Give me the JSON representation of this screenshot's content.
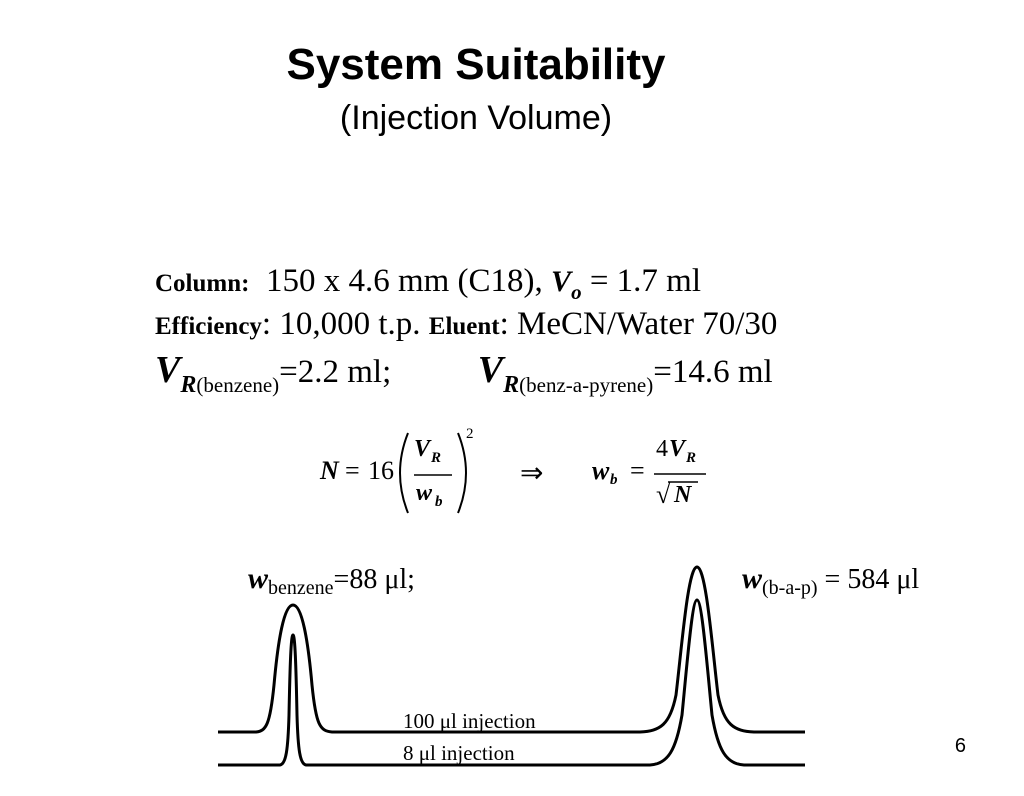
{
  "slide": {
    "title": "System Suitability",
    "subtitle": "(Injection Volume)",
    "page_number": "6"
  },
  "conditions": {
    "column_label": "Column",
    "column_colon": ":",
    "column_value": "150 x 4.6 mm (C18),",
    "vo_symbol": "V",
    "vo_subscript": "o",
    "vo_value": "= 1.7 ml",
    "efficiency_label": "Efficiency",
    "efficiency_value": ": 10,000 t.p.",
    "eluent_label": "Eluent",
    "eluent_value": ": MeCN/Water 70/30",
    "vr_symbol": "V",
    "vr_subscript": "R",
    "vr1_compound": "(benzene)",
    "vr1_value": "=2.2 ml;",
    "vr2_compound": "(benz-a-pyrene)",
    "vr2_value": "=14.6 ml"
  },
  "equation": {
    "N": "N",
    "equals": "=",
    "coefficient": "16",
    "numerator_symbol": "V",
    "numerator_subscript": "R",
    "denominator_symbol": "w",
    "denominator_subscript": "b",
    "exponent": "2",
    "implies": "⇒",
    "result_symbol": "w",
    "result_subscript": "b",
    "result_equals": "=",
    "result_coefficient": "4",
    "result_numerator_symbol": "V",
    "result_numerator_subscript": "R",
    "sqrt": "√",
    "result_denominator": "N"
  },
  "peak_widths": {
    "benzene_symbol": "w",
    "benzene_subscript": "benzene",
    "benzene_value": "=88 μl;",
    "bap_symbol": "w",
    "bap_subscript": "(b-a-p)",
    "bap_value": " = 584 μl"
  },
  "traces": {
    "label_100": "100 μl injection",
    "label_8": "8 μl injection"
  }
}
